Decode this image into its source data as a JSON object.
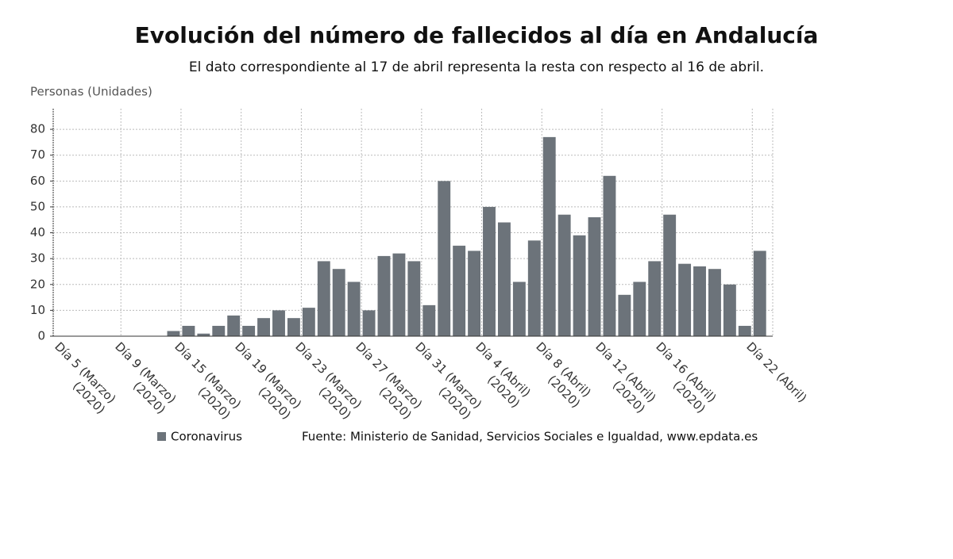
{
  "chart_data": {
    "type": "bar",
    "title": "Evolución del número de fallecidos al día en Andalucía",
    "subtitle": "El dato correspondiente al 17 de abril representa la resta con respecto al 16 de abril.",
    "y_axis_label": "Personas (Unidades)",
    "source": "Fuente: Ministerio de Sanidad, Servicios Sociales e Igualdad, www.epdata.es",
    "categories": [
      "Día 5 (Marzo)\n(2020)",
      null,
      null,
      null,
      "Día 9 (Marzo)\n(2020)",
      null,
      null,
      null,
      "Día 15 (Marzo)\n(2020)",
      null,
      null,
      null,
      "Día 19 (Marzo)\n(2020)",
      null,
      null,
      null,
      "Día 23 (Marzo)\n(2020)",
      null,
      null,
      null,
      "Día 27 (Marzo)\n(2020)",
      null,
      null,
      null,
      "Día 31 (Marzo)\n(2020)",
      null,
      null,
      null,
      "Día 4 (Abril)\n(2020)",
      null,
      null,
      null,
      "Día 8 (Abril)\n(2020)",
      null,
      null,
      null,
      "Día 12 (Abril)\n(2020)",
      null,
      null,
      null,
      "Día 16 (Abril)\n(2020)",
      null,
      null,
      null,
      null,
      null,
      "Día 22 (Abril)"
    ],
    "series": [
      {
        "name": "Coronavirus",
        "color": "#6c737a",
        "values": [
          0,
          0,
          0,
          0,
          0,
          0,
          0,
          2,
          4,
          1,
          4,
          8,
          4,
          7,
          10,
          7,
          11,
          29,
          26,
          21,
          10,
          31,
          32,
          29,
          12,
          60,
          35,
          33,
          50,
          44,
          21,
          37,
          77,
          47,
          39,
          46,
          62,
          16,
          21,
          29,
          47,
          28,
          27,
          26,
          20,
          4,
          33
        ]
      }
    ],
    "ylim": [
      0,
      88
    ],
    "yticks": [
      0,
      10,
      20,
      30,
      40,
      50,
      60,
      70,
      80
    ],
    "grid": true
  }
}
